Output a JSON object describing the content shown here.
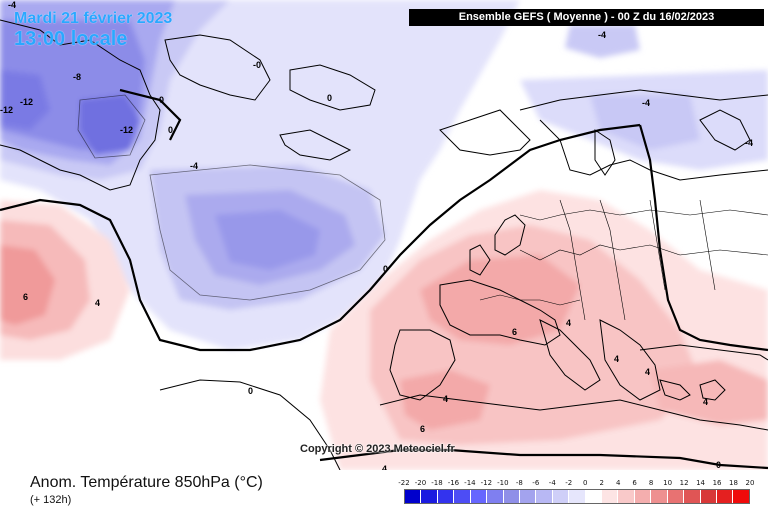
{
  "header": {
    "date": "Mardi 21 février 2023",
    "time": "13:00 locale",
    "run": "Ensemble GEFS  ( Moyenne )  -  00 Z du 16/02/2023"
  },
  "footer": {
    "parameter": "Anom. Température 850hPa (°C)",
    "lead_time": "(+ 132h)",
    "copyright": "Copyright © 2023 Meteociel.fr"
  },
  "legend": {
    "labels": [
      "-22",
      "-20",
      "-18",
      "-16",
      "-14",
      "-12",
      "-10",
      "-8",
      "-6",
      "-4",
      "-2",
      "0",
      "2",
      "4",
      "6",
      "8",
      "10",
      "12",
      "14",
      "16",
      "18",
      "20"
    ],
    "colors": [
      "#0000cc",
      "#1a1ae0",
      "#3333ee",
      "#4d4df5",
      "#6666ff",
      "#7f7ff0",
      "#8f8fe8",
      "#a3a3ee",
      "#b8b8f4",
      "#cfcff8",
      "#e6e6fc",
      "#ffffff",
      "#fde4e4",
      "#f9c9c9",
      "#f4aeae",
      "#ee9090",
      "#e87272",
      "#e05555",
      "#d83838",
      "#e42020",
      "#f00a0a"
    ]
  },
  "contour_labels": [
    {
      "value": "-4",
      "region": "greenland-top"
    },
    {
      "value": "-8",
      "region": "greenland"
    },
    {
      "value": "-12",
      "region": "greenland-west"
    },
    {
      "value": "-12",
      "region": "greenland-west-2"
    },
    {
      "value": "-12",
      "region": "greenland-core"
    },
    {
      "value": "0",
      "region": "greenland-east"
    },
    {
      "value": "-0",
      "region": "greenland-east-2"
    },
    {
      "value": "0",
      "region": "greenland-coast"
    },
    {
      "value": "0",
      "region": "svalbard"
    },
    {
      "value": "-4",
      "region": "north-atlantic"
    },
    {
      "value": "-4",
      "region": "barents"
    },
    {
      "value": "-4",
      "region": "scandinavia"
    },
    {
      "value": "-4",
      "region": "russia"
    },
    {
      "value": "0",
      "region": "biscay"
    },
    {
      "value": "6",
      "region": "west-atlantic"
    },
    {
      "value": "4",
      "region": "west-atlantic-2"
    },
    {
      "value": "6",
      "region": "alps"
    },
    {
      "value": "4",
      "region": "adriatic"
    },
    {
      "value": "4",
      "region": "balkans"
    },
    {
      "value": "4",
      "region": "iberia"
    },
    {
      "value": "6",
      "region": "morocco"
    },
    {
      "value": "4",
      "region": "sahara"
    },
    {
      "value": "4",
      "region": "east-med"
    },
    {
      "value": "4",
      "region": "turkey"
    },
    {
      "value": "0",
      "region": "north-africa"
    },
    {
      "value": "0",
      "region": "south-east"
    }
  ]
}
